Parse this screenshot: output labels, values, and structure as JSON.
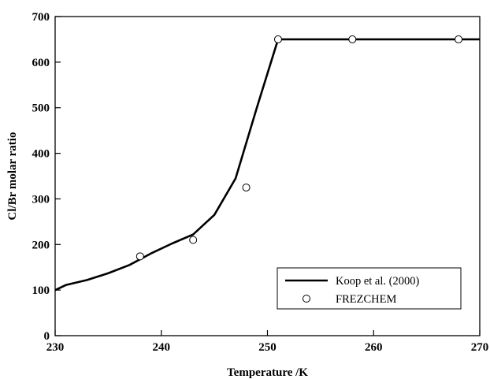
{
  "chart_data": {
    "type": "line",
    "title": "",
    "xlabel": "Temperature /K",
    "ylabel": "Cl/Br molar ratio",
    "xlim": [
      230,
      270
    ],
    "ylim": [
      0,
      700
    ],
    "xticks": [
      230,
      240,
      250,
      260,
      270
    ],
    "yticks": [
      0,
      100,
      200,
      300,
      400,
      500,
      600,
      700
    ],
    "xtick_labels": [
      "230",
      "240",
      "250",
      "260",
      "270"
    ],
    "ytick_labels": [
      "0",
      "100",
      "200",
      "300",
      "400",
      "500",
      "600",
      "700"
    ],
    "grid": false,
    "legend_position": "bottom-right",
    "series": [
      {
        "name": "Koop et al. (2000)",
        "kind": "line",
        "color": "#000000",
        "x": [
          230,
          231,
          233,
          235,
          237,
          239,
          241,
          243,
          245,
          247,
          249,
          251,
          253,
          255,
          260,
          265,
          270
        ],
        "y": [
          100,
          111,
          122,
          137,
          155,
          180,
          202,
          222,
          265,
          345,
          500,
          650,
          650,
          650,
          650,
          650,
          650
        ]
      },
      {
        "name": "FREZCHEM",
        "kind": "scatter",
        "marker": "open-circle",
        "color": "#000000",
        "x": [
          238,
          243,
          248,
          251,
          258,
          268
        ],
        "y": [
          174,
          210,
          325,
          650,
          650,
          650
        ]
      }
    ]
  }
}
